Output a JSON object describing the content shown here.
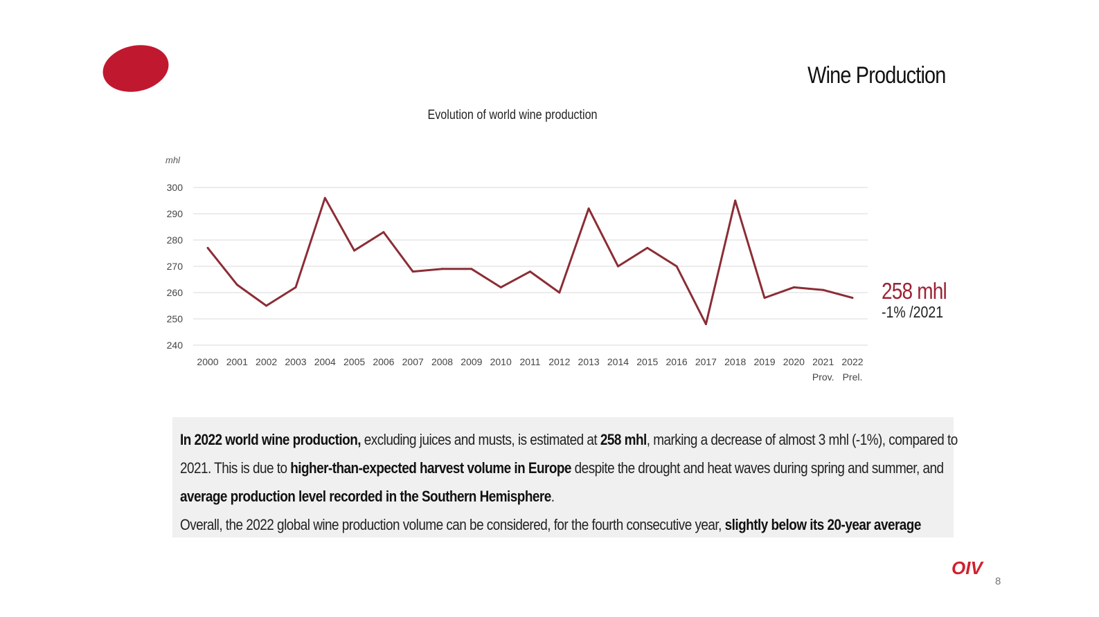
{
  "slide": {
    "title": "Wine Production",
    "page_number": "8",
    "logo_text": "OIV"
  },
  "callout": {
    "value": "258 mhl",
    "change": "-1% /2021"
  },
  "summary": {
    "p1_s1": "In 2022 world wine production,",
    "p1_t1": " excluding juices and musts, is estimated at ",
    "p1_s2": "258 mhl",
    "p1_t2": ", marking a decrease of almost 3 mhl (-1%), compared to",
    "p2_t1": "2021. This is due to ",
    "p2_s1": "higher-than-expected harvest volume in Europe",
    "p2_t2": " despite the drought and heat waves during spring and summer, and",
    "p3_s1": "average production level recorded in the Southern Hemisphere",
    "p3_t1": ".",
    "p4_t1": "Overall, the 2022 global wine production volume can be considered, for the fourth consecutive year, ",
    "p4_s1": "slightly below its 20-year average"
  },
  "colors": {
    "line": "#8b2d35",
    "accent": "#9b2335",
    "logo": "#c0192f",
    "grid": "#d9d9d9"
  },
  "chart_data": {
    "type": "line",
    "title": "Evolution of world wine production",
    "ylabel": "mhl",
    "xlabel": "",
    "ylim": [
      240,
      300
    ],
    "yticks": [
      240,
      250,
      260,
      270,
      280,
      290,
      300
    ],
    "grid": true,
    "categories": [
      "2000",
      "2001",
      "2002",
      "2003",
      "2004",
      "2005",
      "2006",
      "2007",
      "2008",
      "2009",
      "2010",
      "2011",
      "2012",
      "2013",
      "2014",
      "2015",
      "2016",
      "2017",
      "2018",
      "2019",
      "2020",
      "2021",
      "2022"
    ],
    "category_sublabels": [
      "",
      "",
      "",
      "",
      "",
      "",
      "",
      "",
      "",
      "",
      "",
      "",
      "",
      "",
      "",
      "",
      "",
      "",
      "",
      "",
      "",
      "Prov.",
      "Prel."
    ],
    "series": [
      {
        "name": "World wine production",
        "values": [
          277,
          263,
          255,
          262,
          296,
          276,
          283,
          268,
          269,
          269,
          262,
          268,
          260,
          292,
          270,
          277,
          270,
          248,
          295,
          258,
          262,
          261,
          258
        ]
      }
    ]
  }
}
